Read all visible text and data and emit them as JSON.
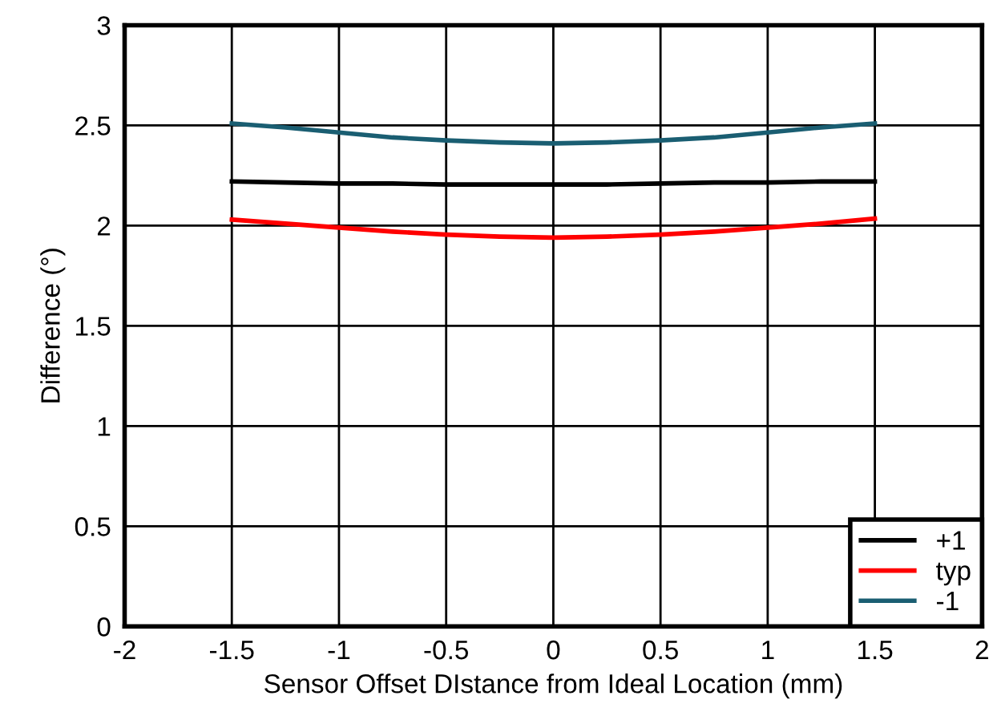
{
  "chart_data": {
    "type": "line",
    "xlabel": "Sensor Offset DIstance from Ideal Location (mm)",
    "ylabel": "Difference (°)",
    "x": [
      -1.5,
      -1.25,
      -1,
      -0.75,
      -0.5,
      -0.25,
      0,
      0.25,
      0.5,
      0.75,
      1,
      1.25,
      1.5
    ],
    "series": [
      {
        "name": "+1",
        "color": "#000000",
        "values": [
          2.22,
          2.215,
          2.21,
          2.21,
          2.205,
          2.205,
          2.205,
          2.205,
          2.21,
          2.215,
          2.215,
          2.22,
          2.22
        ]
      },
      {
        "name": "typ",
        "color": "#ff0000",
        "values": [
          2.03,
          2.01,
          1.99,
          1.97,
          1.955,
          1.945,
          1.94,
          1.945,
          1.955,
          1.97,
          1.99,
          2.01,
          2.035
        ]
      },
      {
        "name": "-1",
        "color": "#1a5e72",
        "values": [
          2.51,
          2.49,
          2.465,
          2.44,
          2.425,
          2.415,
          2.41,
          2.415,
          2.425,
          2.44,
          2.465,
          2.49,
          2.51
        ]
      }
    ],
    "xlim": [
      -2,
      2
    ],
    "xticks": [
      -2,
      -1.5,
      -1,
      -0.5,
      0,
      0.5,
      1,
      1.5,
      2
    ],
    "ylim": [
      0,
      3
    ],
    "yticks": [
      0,
      0.5,
      1,
      1.5,
      2,
      2.5,
      3
    ],
    "grid": true,
    "legend": "bottom right",
    "marker": "none",
    "line_style": "solid"
  }
}
